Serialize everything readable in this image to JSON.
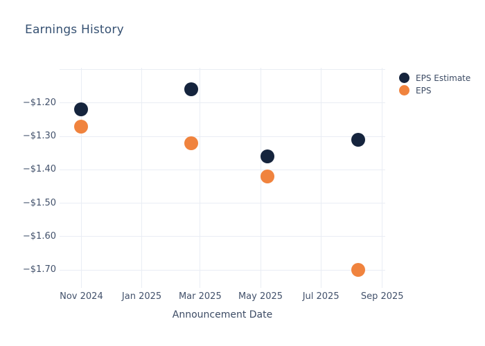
{
  "colors": {
    "background": "#ffffff",
    "grid": "#e9edf4",
    "title_text": "#365172",
    "axis_text": "#42516b",
    "eps_estimate": "#15243d",
    "eps": "#f0833e"
  },
  "chart_data": {
    "type": "scatter",
    "title": "Earnings History",
    "xlabel": "Announcement Date",
    "ylabel": "",
    "grid": true,
    "legend_position": "top-right",
    "x_range": [
      "2024-10-10",
      "2025-09-04"
    ],
    "y_range": [
      -1.745,
      -1.095
    ],
    "x_ticks": [
      {
        "date": "2024-11-01",
        "label": "Nov 2024"
      },
      {
        "date": "2025-01-01",
        "label": "Jan 2025"
      },
      {
        "date": "2025-03-01",
        "label": "Mar 2025"
      },
      {
        "date": "2025-05-01",
        "label": "May 2025"
      },
      {
        "date": "2025-07-01",
        "label": "Jul 2025"
      },
      {
        "date": "2025-09-01",
        "label": "Sep 2025"
      }
    ],
    "y_ticks": [
      {
        "value": -1.1,
        "label": ""
      },
      {
        "value": -1.2,
        "label": "−$1.20"
      },
      {
        "value": -1.3,
        "label": "−$1.30"
      },
      {
        "value": -1.4,
        "label": "−$1.40"
      },
      {
        "value": -1.5,
        "label": "−$1.50"
      },
      {
        "value": -1.6,
        "label": "−$1.60"
      },
      {
        "value": -1.7,
        "label": "−$1.70"
      }
    ],
    "series": [
      {
        "name": "EPS Estimate",
        "color": "#15243d",
        "points": [
          {
            "date": "2024-11-01",
            "value": -1.22
          },
          {
            "date": "2025-02-20",
            "value": -1.16
          },
          {
            "date": "2025-05-08",
            "value": -1.36
          },
          {
            "date": "2025-08-08",
            "value": -1.31
          }
        ]
      },
      {
        "name": "EPS",
        "color": "#f0833e",
        "points": [
          {
            "date": "2024-11-01",
            "value": -1.27
          },
          {
            "date": "2025-02-20",
            "value": -1.32
          },
          {
            "date": "2025-05-08",
            "value": -1.42
          },
          {
            "date": "2025-08-08",
            "value": -1.7
          }
        ]
      }
    ]
  }
}
